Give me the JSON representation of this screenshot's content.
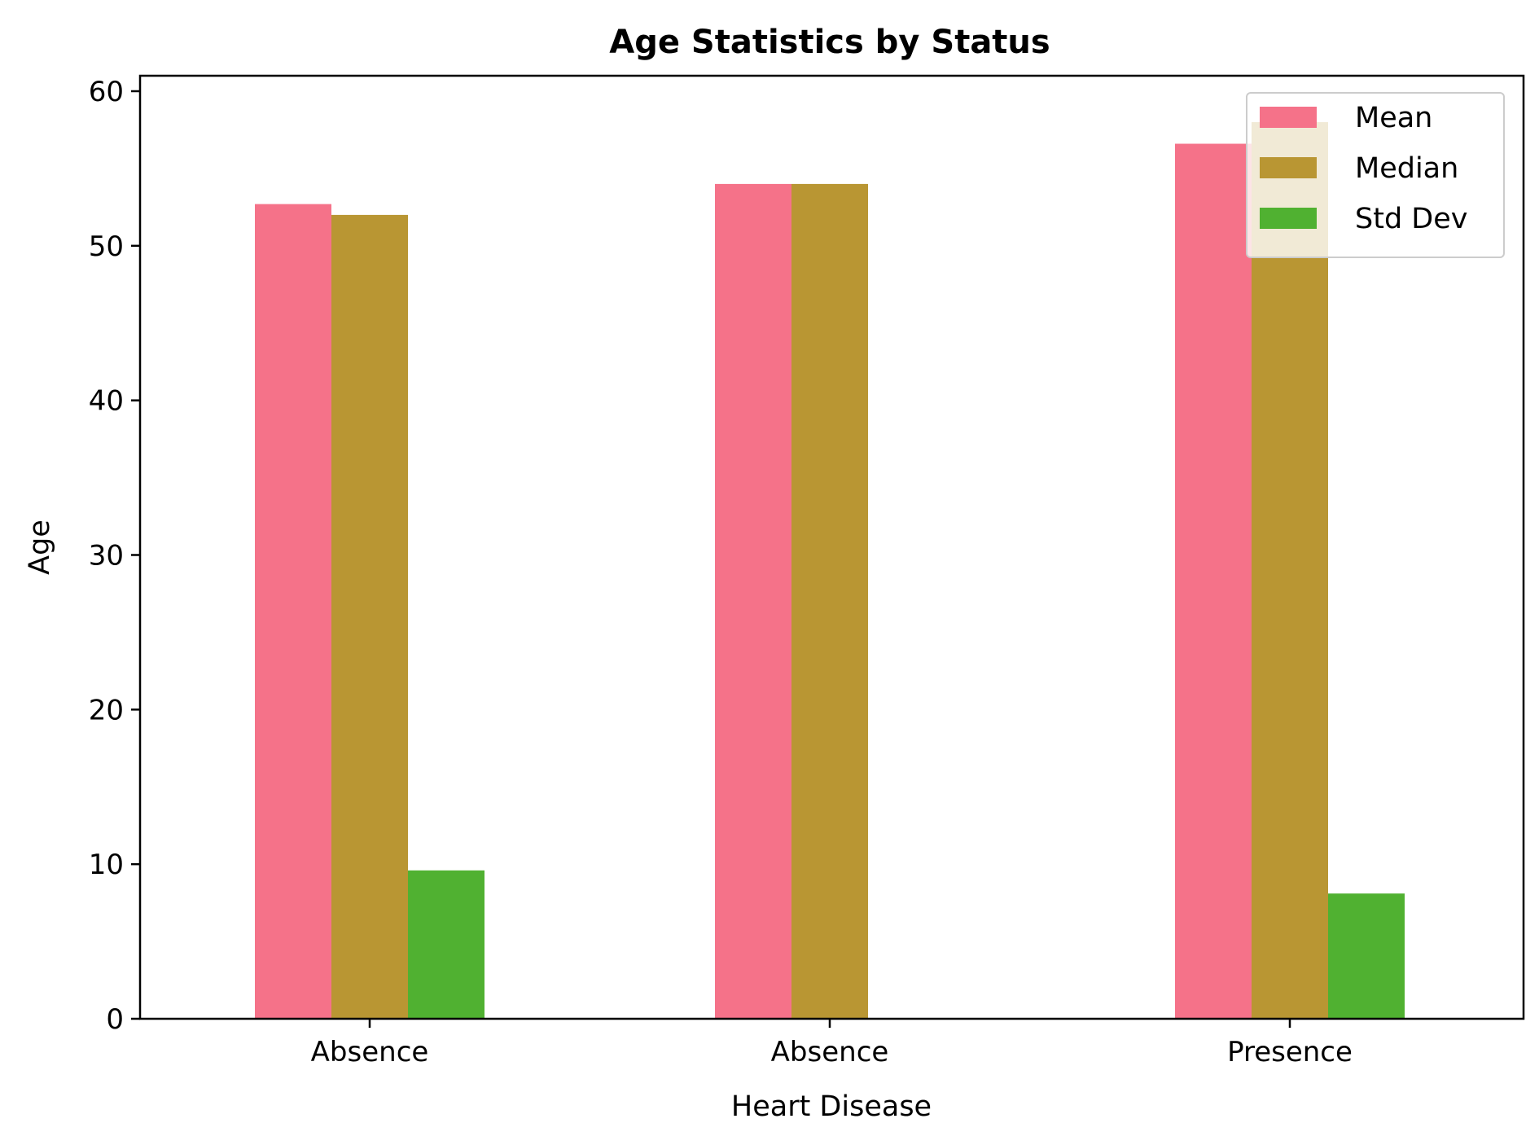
{
  "chart_data": {
    "type": "bar",
    "title": "Age Statistics by Status",
    "xlabel": "Heart Disease",
    "ylabel": "Age",
    "categories": [
      "Absence",
      "Absence",
      "Presence"
    ],
    "series": [
      {
        "name": "Mean",
        "color": "#f57289",
        "values": [
          52.7,
          54.0,
          56.6
        ]
      },
      {
        "name": "Median",
        "color": "#b99633",
        "values": [
          52.0,
          54.0,
          58.0
        ]
      },
      {
        "name": "Std Dev",
        "color": "#50b131",
        "values": [
          9.6,
          null,
          8.1
        ]
      }
    ],
    "ylim": [
      0,
      61
    ],
    "yticks": [
      0,
      10,
      20,
      30,
      40,
      50,
      60
    ],
    "grid": false,
    "legend": "top-right"
  }
}
